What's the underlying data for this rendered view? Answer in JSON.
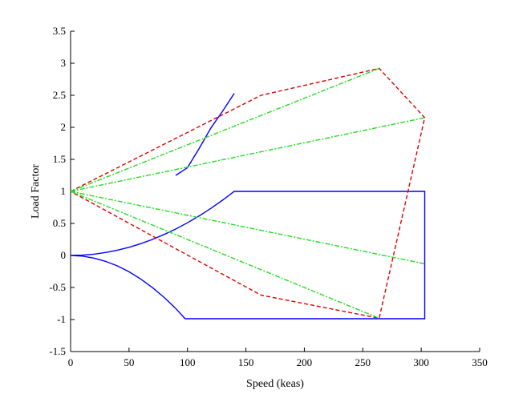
{
  "chart_data": {
    "type": "line",
    "title": "",
    "xlabel": "Speed (keas)",
    "ylabel": "Load Factor",
    "xlim": [
      0,
      350
    ],
    "ylim": [
      -1.5,
      3.5
    ],
    "xticks": [
      0,
      50,
      100,
      150,
      200,
      250,
      300,
      350
    ],
    "yticks": [
      -1.5,
      -1,
      -0.5,
      0,
      0.5,
      1,
      1.5,
      2,
      2.5,
      3,
      3.5
    ],
    "grid": false,
    "legend": "none",
    "series": [
      {
        "color": "#0000ff",
        "style": "solid",
        "x": [
          0,
          10,
          20,
          30,
          40,
          50,
          60,
          70,
          80,
          90,
          100,
          110,
          120,
          130,
          140,
          303,
          303,
          98,
          90,
          80,
          70,
          60,
          50,
          40,
          30,
          20,
          10,
          0
        ],
        "y": [
          0,
          0.005,
          0.02,
          0.046,
          0.082,
          0.128,
          0.184,
          0.25,
          0.327,
          0.413,
          0.51,
          0.618,
          0.735,
          0.862,
          1.0,
          1.0,
          -0.988,
          -0.988,
          -0.828,
          -0.655,
          -0.501,
          -0.368,
          -0.255,
          -0.163,
          -0.092,
          -0.041,
          -0.01,
          0
        ],
        "scale": [
          1,
          1,
          1,
          1,
          1,
          1,
          1,
          1,
          1,
          1,
          1,
          1,
          1,
          1,
          1,
          1,
          1,
          1,
          1,
          1,
          1,
          1,
          1,
          1,
          1,
          1,
          1,
          1
        ]
      },
      {
        "color": "#0000ff",
        "style": "solid",
        "x": [
          90,
          100,
          110,
          120,
          130,
          140
        ],
        "y": [
          1.25,
          1.37,
          1.67,
          1.99,
          2.25,
          2.53
        ]
      },
      {
        "color": "#dd0000",
        "style": "dashed",
        "x": [
          0,
          163,
          264,
          303,
          264,
          163,
          0
        ],
        "y": [
          1,
          2.5,
          2.92,
          2.15,
          -0.98,
          -0.62,
          1
        ]
      },
      {
        "color": "#22dd22",
        "style": "dash-dot",
        "x": [
          0,
          264,
          0,
          303,
          0,
          303,
          0,
          264
        ],
        "y": [
          1,
          2.92,
          1,
          2.15,
          1,
          -0.13,
          1,
          -0.98
        ]
      }
    ]
  }
}
